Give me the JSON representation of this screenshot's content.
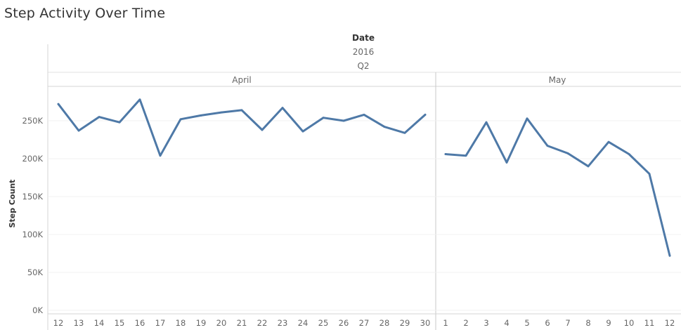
{
  "title": "Step Activity Over Time",
  "header": {
    "field": "Date",
    "year": "2016",
    "quarter": "Q2",
    "months": [
      "April",
      "May"
    ]
  },
  "chart_data": {
    "type": "line",
    "title": "Step Activity Over Time",
    "ylabel": "Step Count",
    "ylim": [
      0,
      290000
    ],
    "yticks": [
      0,
      50000,
      100000,
      150000,
      200000,
      250000
    ],
    "ytick_labels": [
      "0K",
      "50K",
      "100K",
      "150K",
      "200K",
      "250K"
    ],
    "grid": true,
    "line_color": "#4e79a7",
    "panes": [
      {
        "month": "April",
        "x": [
          12,
          13,
          14,
          15,
          16,
          17,
          18,
          19,
          20,
          21,
          22,
          23,
          24,
          25,
          26,
          27,
          28,
          29,
          30
        ],
        "values": [
          272000,
          237000,
          255000,
          248000,
          278000,
          204000,
          252000,
          257000,
          261000,
          264000,
          238000,
          267000,
          236000,
          254000,
          250000,
          258000,
          242000,
          234000,
          258000
        ]
      },
      {
        "month": "May",
        "x": [
          1,
          2,
          3,
          4,
          5,
          6,
          7,
          8,
          9,
          10,
          11,
          12
        ],
        "values": [
          206000,
          204000,
          248000,
          195000,
          253000,
          217000,
          207000,
          190000,
          222000,
          206000,
          180000,
          72000
        ]
      }
    ]
  }
}
